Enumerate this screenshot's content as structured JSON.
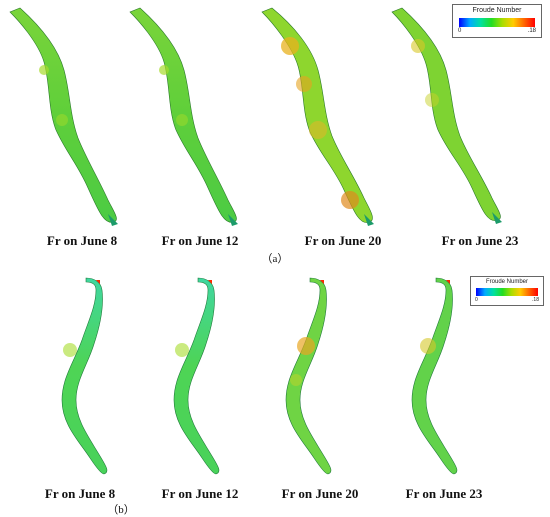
{
  "panel_a": {
    "label": "（a）",
    "captions": [
      "Fr on June 8",
      "Fr on June 12",
      "Fr on June 20",
      "Fr on June 23"
    ],
    "legend": {
      "title": "Froude Number",
      "min": "0",
      "max": ".18"
    }
  },
  "panel_b": {
    "label": "（b）",
    "captions": [
      "Fr on June 8",
      "Fr on June 12",
      "Fr on June 20",
      "Fr on June 23"
    ],
    "legend": {
      "title": "Froude Number",
      "min": "0",
      "max": ".18"
    }
  },
  "colors": {
    "colormap": [
      "#0000ff",
      "#00aaff",
      "#00e0a0",
      "#22dd22",
      "#aadd00",
      "#ffcc00",
      "#ff6600",
      "#ff0000"
    ],
    "river_a": "#5fd23c",
    "river_b": "#45d65a"
  }
}
